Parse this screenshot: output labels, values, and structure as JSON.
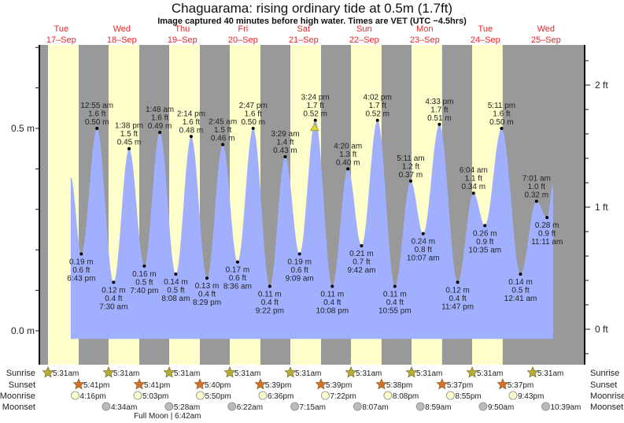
{
  "title": "Chaguarama: rising  ordinary tide at 0.5m (1.7ft)",
  "subtitle": "Image captured 40 minutes before high water. Times are VET (UTC −4.5hrs)",
  "chart_data": {
    "type": "area",
    "title": "Chaguarama: rising  ordinary tide at 0.5m (1.7ft)",
    "colors": {
      "night": "#999999",
      "day": "#ffffcc",
      "water": "#a0b0ff",
      "day_label": "#e8262b",
      "sunrise": "#b5ad35",
      "sunset": "#d8702a",
      "moonrise": "#ffffcc",
      "moonset": "#bbbbbb",
      "marker": "#e6d83a"
    },
    "days": [
      {
        "name": "Tue",
        "date": "17–Sep"
      },
      {
        "name": "Wed",
        "date": "18–Sep"
      },
      {
        "name": "Thu",
        "date": "19–Sep"
      },
      {
        "name": "Fri",
        "date": "20–Sep"
      },
      {
        "name": "Sat",
        "date": "21–Sep"
      },
      {
        "name": "Sun",
        "date": "22–Sep"
      },
      {
        "name": "Mon",
        "date": "23–Sep"
      },
      {
        "name": "Tue",
        "date": "24–Sep"
      },
      {
        "name": "Wed",
        "date": "25–Sep"
      }
    ],
    "left_axis": {
      "unit": "m",
      "ticks": [
        "0.0 m",
        "0.5 m"
      ],
      "range_m": [
        -0.08,
        0.71
      ]
    },
    "right_axis": {
      "unit": "ft",
      "ticks": [
        "0 ft",
        "1 ft",
        "2 ft"
      ]
    },
    "extremes": [
      {
        "day": 0,
        "time": "6:43 pm",
        "m": "0.19",
        "ft": "0.6",
        "type": "low"
      },
      {
        "day": 1,
        "time": "12:55 am",
        "m": "0.50",
        "ft": "1.6",
        "type": "high"
      },
      {
        "day": 1,
        "time": "7:30 am",
        "m": "0.12",
        "ft": "0.4",
        "type": "low"
      },
      {
        "day": 1,
        "time": "1:38 pm",
        "m": "0.45",
        "ft": "1.5",
        "type": "high"
      },
      {
        "day": 1,
        "time": "7:40 pm",
        "m": "0.16",
        "ft": "0.5",
        "type": "low"
      },
      {
        "day": 2,
        "time": "1:48 am",
        "m": "0.49",
        "ft": "1.6",
        "type": "high"
      },
      {
        "day": 2,
        "time": "8:08 am",
        "m": "0.14",
        "ft": "0.5",
        "type": "low"
      },
      {
        "day": 2,
        "time": "2:14 pm",
        "m": "0.48",
        "ft": "1.6",
        "type": "high"
      },
      {
        "day": 2,
        "time": "8:29 pm",
        "m": "0.13",
        "ft": "0.4",
        "type": "low"
      },
      {
        "day": 3,
        "time": "2:45 am",
        "m": "0.46",
        "ft": "1.5",
        "type": "high"
      },
      {
        "day": 3,
        "time": "8:36 am",
        "m": "0.17",
        "ft": "0.6",
        "type": "low"
      },
      {
        "day": 3,
        "time": "2:47 pm",
        "m": "0.50",
        "ft": "1.6",
        "type": "high"
      },
      {
        "day": 3,
        "time": "9:22 pm",
        "m": "0.11",
        "ft": "0.4",
        "type": "low"
      },
      {
        "day": 4,
        "time": "3:29 am",
        "m": "0.43",
        "ft": "1.4",
        "type": "high"
      },
      {
        "day": 4,
        "time": "9:09 am",
        "m": "0.19",
        "ft": "0.6",
        "type": "low"
      },
      {
        "day": 4,
        "time": "3:24 pm",
        "m": "0.52",
        "ft": "1.7",
        "type": "high"
      },
      {
        "day": 4,
        "time": "10:08 pm",
        "m": "0.11",
        "ft": "0.4",
        "type": "low"
      },
      {
        "day": 5,
        "time": "4:20 am",
        "m": "0.40",
        "ft": "1.3",
        "type": "high"
      },
      {
        "day": 5,
        "time": "9:42 am",
        "m": "0.21",
        "ft": "0.7",
        "type": "low"
      },
      {
        "day": 5,
        "time": "4:02 pm",
        "m": "0.52",
        "ft": "1.7",
        "type": "high"
      },
      {
        "day": 5,
        "time": "10:55 pm",
        "m": "0.11",
        "ft": "0.4",
        "type": "low"
      },
      {
        "day": 6,
        "time": "5:11 am",
        "m": "0.37",
        "ft": "1.2",
        "type": "high"
      },
      {
        "day": 6,
        "time": "10:07 am",
        "m": "0.24",
        "ft": "0.8",
        "type": "low"
      },
      {
        "day": 6,
        "time": "4:33 pm",
        "m": "0.51",
        "ft": "1.7",
        "type": "high"
      },
      {
        "day": 6,
        "time": "11:47 pm",
        "m": "0.12",
        "ft": "0.4",
        "type": "low"
      },
      {
        "day": 7,
        "time": "6:04 am",
        "m": "0.34",
        "ft": "1.1",
        "type": "high"
      },
      {
        "day": 7,
        "time": "10:35 am",
        "m": "0.26",
        "ft": "0.9",
        "type": "low"
      },
      {
        "day": 7,
        "time": "5:11 pm",
        "m": "0.50",
        "ft": "1.6",
        "type": "high"
      },
      {
        "day": 8,
        "time": "12:41 am",
        "m": "0.14",
        "ft": "0.5",
        "type": "low"
      },
      {
        "day": 8,
        "time": "7:01 am",
        "m": "0.32",
        "ft": "1.0",
        "type": "high"
      },
      {
        "day": 8,
        "time": "11:11 am",
        "m": "0.28",
        "ft": "0.9",
        "type": "low"
      }
    ],
    "current_marker": {
      "day": 4,
      "time": "3:24 pm"
    },
    "rows": {
      "sunrise": {
        "label": "Sunrise",
        "times": [
          "5:31am",
          "5:31am",
          "5:31am",
          "5:31am",
          "5:31am",
          "5:31am",
          "5:31am",
          "5:31am",
          "5:31am"
        ],
        "start_day": 0
      },
      "sunset": {
        "label": "Sunset",
        "times": [
          "5:41pm",
          "5:41pm",
          "5:40pm",
          "5:39pm",
          "5:39pm",
          "5:38pm",
          "5:37pm",
          "5:37pm"
        ],
        "start_day": 0
      },
      "moonrise": {
        "label": "Moonrise",
        "times": [
          "4:16pm",
          "5:03pm",
          "5:50pm",
          "6:36pm",
          "7:22pm",
          "8:08pm",
          "8:55pm",
          "9:43pm"
        ],
        "start_day": 0
      },
      "moonset": {
        "label": "Moonset",
        "times": [
          "4:34am",
          "5:28am",
          "6:22am",
          "7:15am",
          "8:07am",
          "8:59am",
          "9:50am",
          "10:39am"
        ],
        "start_day": 1
      }
    },
    "moon_phase": {
      "text": "Full Moon | 6:42am",
      "day": 2,
      "time": "6:42am"
    }
  }
}
